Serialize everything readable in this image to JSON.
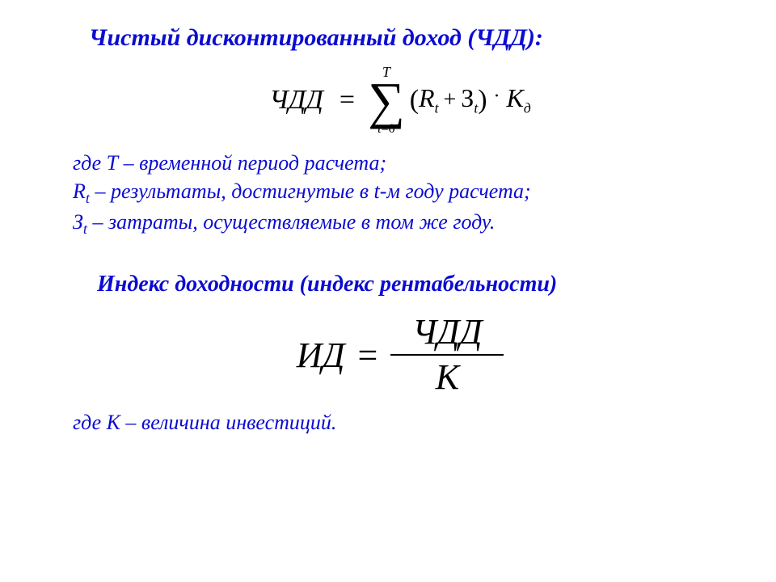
{
  "text_color": "#0b0bd2",
  "formula_color": "#000000",
  "background_color": "#ffffff",
  "heading1": "Чистый дисконтированный доход (ЧДД):",
  "formula1": {
    "lhs": "ЧДД",
    "sum_upper": "T",
    "sum_lower_symbol": "t",
    "sum_lower_eq": "=",
    "sum_lower_value": "0",
    "paren_open": "(",
    "R": "R",
    "R_sub": "t",
    "plus": "+",
    "Z": "З",
    "Z_sub": "t",
    "paren_close": ")",
    "dot": "·",
    "K": "K",
    "K_sub": "д"
  },
  "desc1_line1": "где Т – временной период расчета;",
  "desc1_line2_before": "R",
  "desc1_line2_sub": "t",
  "desc1_line2_after": " – результаты, достигнутые в t-м году расчета;",
  "desc1_line3_before": "З",
  "desc1_line3_sub": "t",
  "desc1_line3_after": " – затраты, осуществляемые в том же году.",
  "heading2": "Индекс доходности (индекс рентабельности)",
  "formula2": {
    "lhs": "ИД",
    "numerator": "ЧДД",
    "denominator": "К"
  },
  "desc2": "где К – величина инвестиций."
}
